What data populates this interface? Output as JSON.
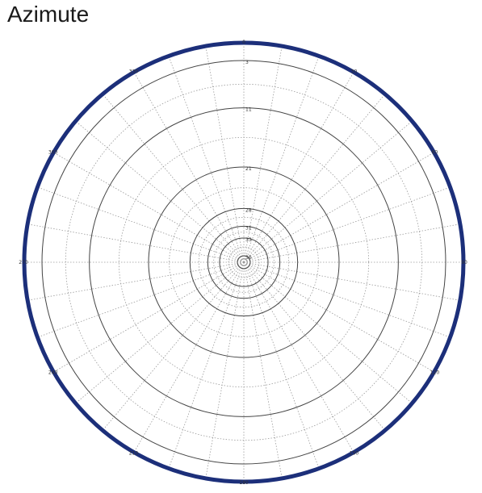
{
  "chart_data": {
    "type": "polar",
    "title": "Azimute",
    "angle_ticks": [
      0,
      30,
      60,
      90,
      120,
      150,
      180,
      210,
      240,
      270,
      300,
      330
    ],
    "angle_tick_labels": [
      "0",
      "30",
      "60",
      "90",
      "120",
      "150",
      "180",
      "210",
      "240",
      "270",
      "300",
      "330"
    ],
    "angle_grid_step_deg": 10,
    "radial_rings": [
      3,
      11,
      21,
      28,
      31,
      33,
      36
    ],
    "radial_tick_labels": [
      "3",
      "11",
      "21",
      "28",
      "31",
      "33",
      "36"
    ],
    "radial_lim": [
      0,
      36
    ],
    "radial_direction": "decreasing-outward",
    "series": [],
    "grid": true,
    "outer_ring_color": "#1c2f7a",
    "grid_color": "#9a9a9a",
    "ring_color": "#444444"
  }
}
